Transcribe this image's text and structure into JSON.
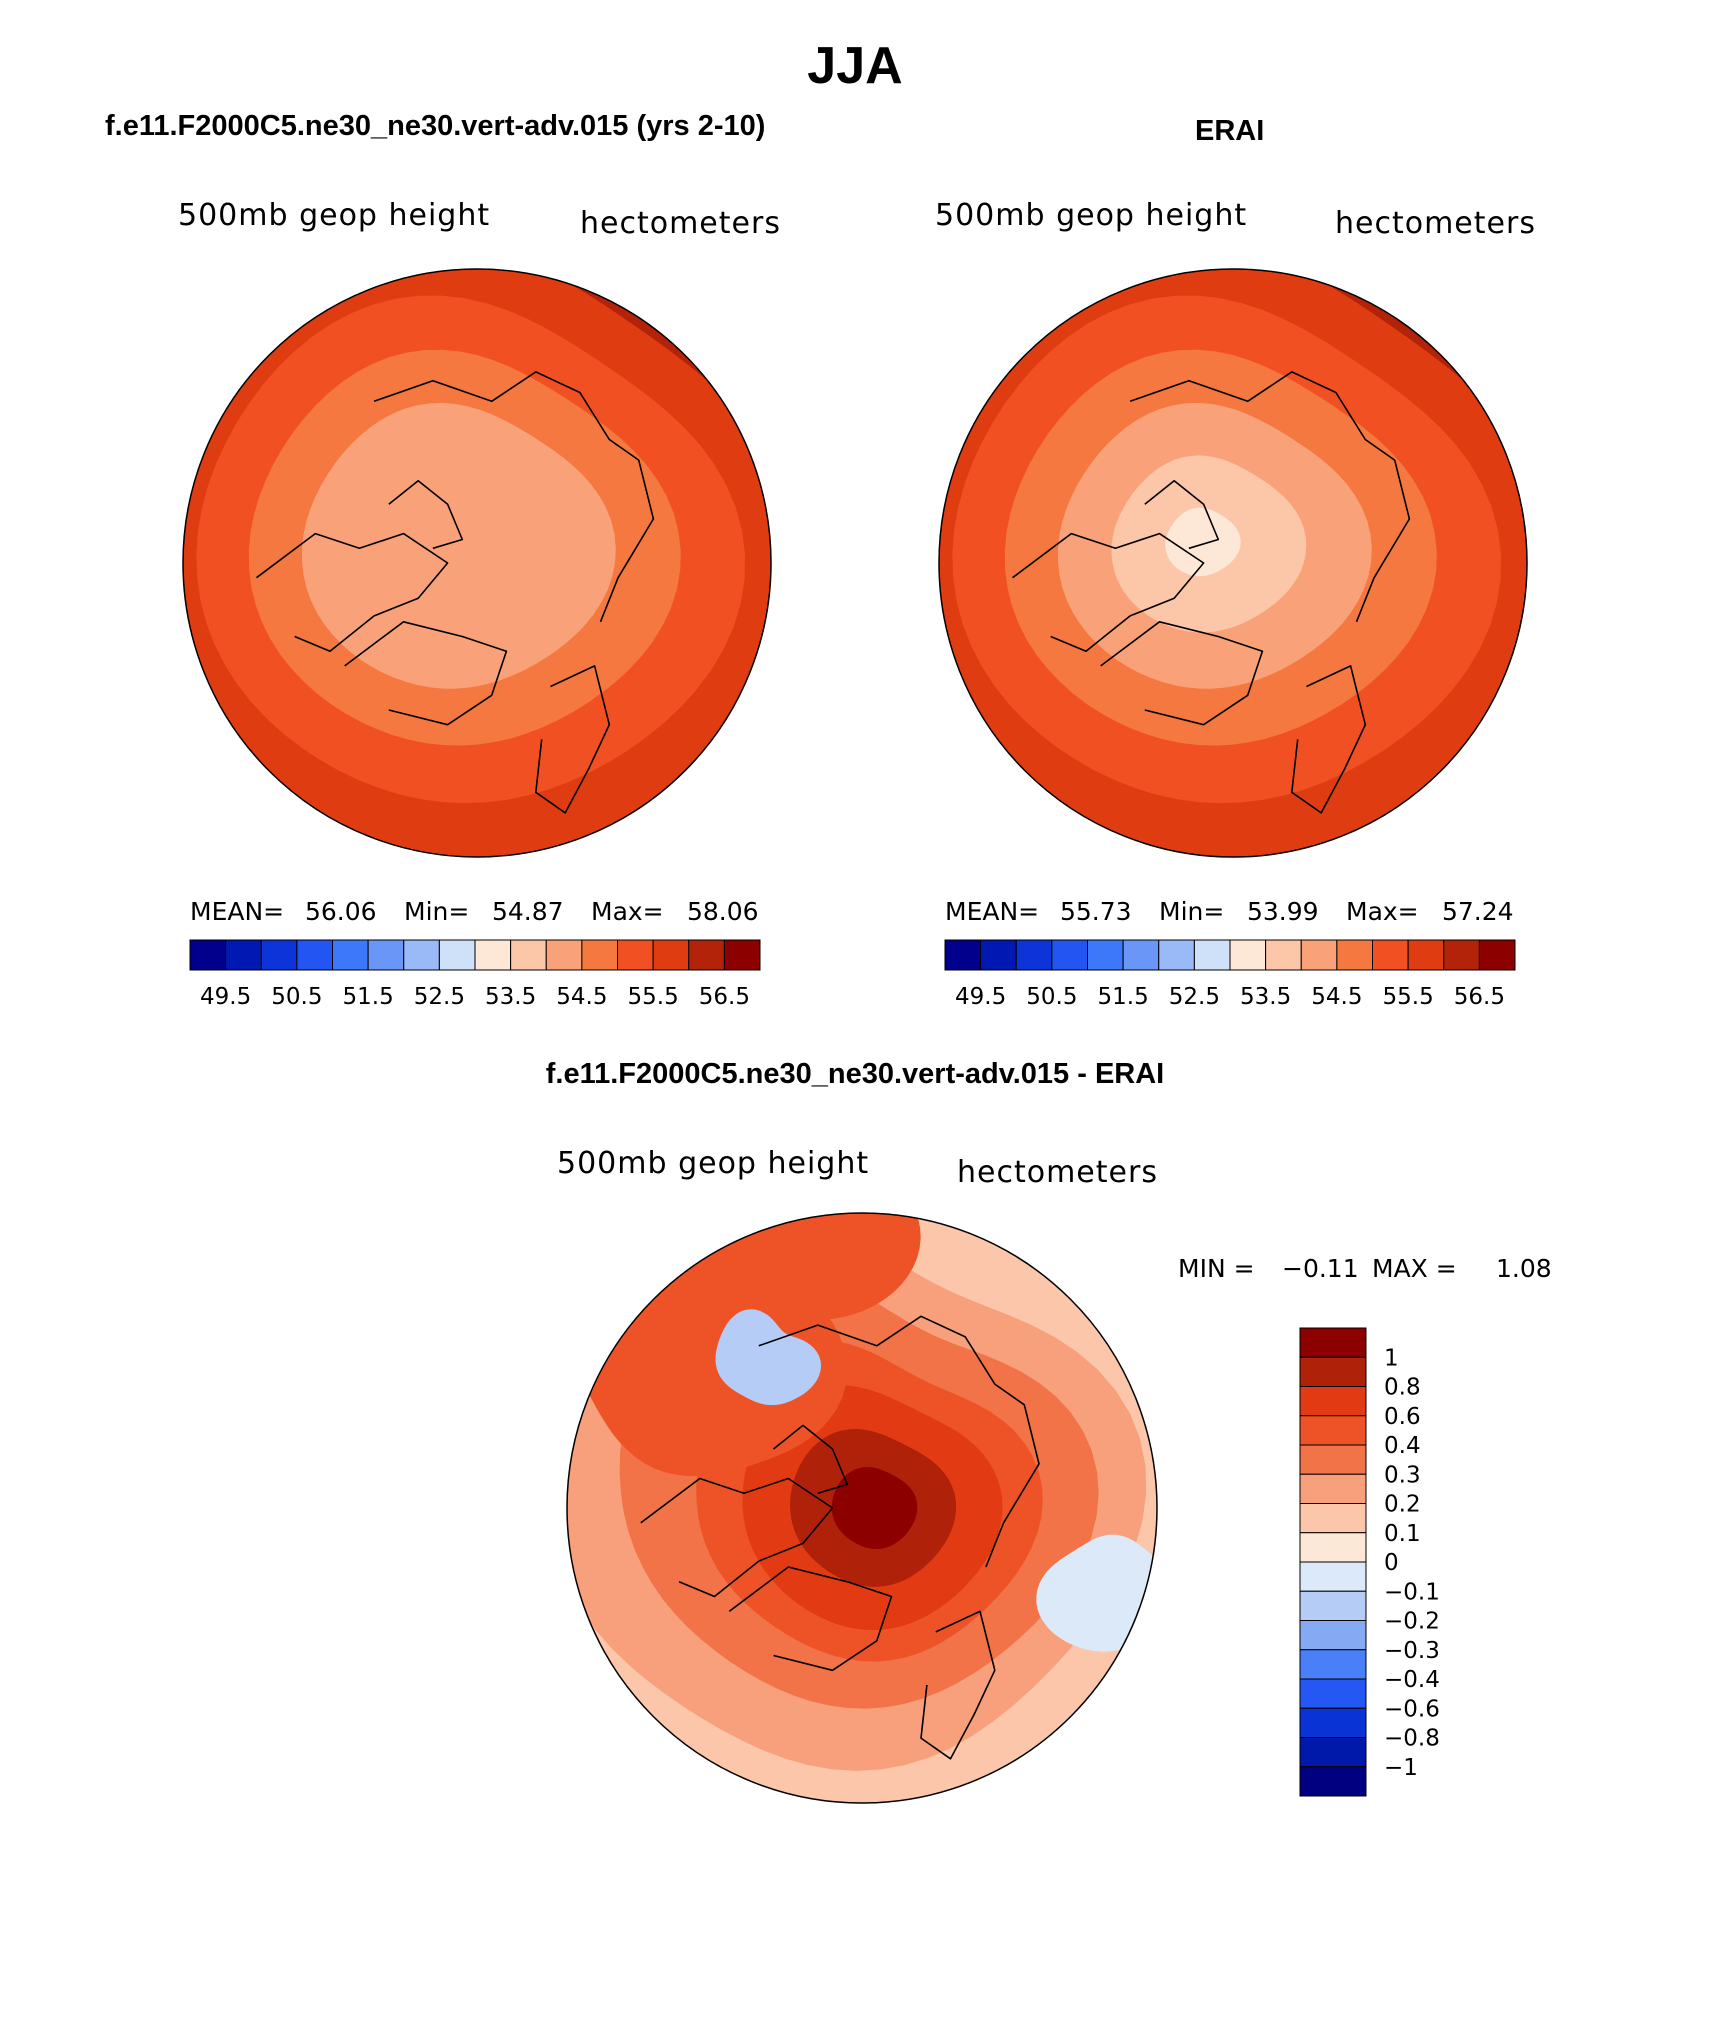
{
  "page": {
    "title": "JJA",
    "left_title": "f.e11.F2000C5.ne30_ne30.vert-adv.015 (yrs 2-10)",
    "right_title": "ERAI",
    "diff_title": "f.e11.F2000C5.ne30_ne30.vert-adv.015 - ERAI"
  },
  "colors": {
    "abs_scale": [
      "#00008c",
      "#0019b2",
      "#0c34d9",
      "#2255f2",
      "#3d78fa",
      "#6996f7",
      "#9ab9f7",
      "#cfe0f9",
      "#fde7d7",
      "#fcc6a8",
      "#f9a27a",
      "#f4783f",
      "#f15022",
      "#e03c12",
      "#b3230a",
      "#8c0000"
    ],
    "diff_scale": [
      "#000080",
      "#0019aa",
      "#0a33d6",
      "#2557f5",
      "#4a80f7",
      "#86a9f3",
      "#b5cdf6",
      "#dbe9f9",
      "#fde7d6",
      "#fbc6a9",
      "#f7a07b",
      "#f17347",
      "#ee5327",
      "#e23b14",
      "#b0210a",
      "#8c0000"
    ]
  },
  "chart_data": [
    {
      "type": "heatmap",
      "panel": "model",
      "projection": "north polar stereographic",
      "variable": "500mb geop height",
      "units": "hectometers",
      "stats": {
        "mean_label": "MEAN=",
        "mean": "56.06",
        "min_label": "Min=",
        "min": "54.87",
        "max_label": "Max=",
        "max": "58.06"
      },
      "levels": [
        "49.5",
        "50.5",
        "51.5",
        "52.5",
        "53.5",
        "54.5",
        "55.5",
        "56.5"
      ],
      "field_levels_outer_to_center": [
        15,
        14,
        13,
        12,
        11,
        10
      ]
    },
    {
      "type": "heatmap",
      "panel": "observations",
      "projection": "north polar stereographic",
      "variable": "500mb geop height",
      "units": "hectometers",
      "stats": {
        "mean_label": "MEAN=",
        "mean": "55.73",
        "min_label": "Min=",
        "min": "53.99",
        "max_label": "Max=",
        "max": "57.24"
      },
      "levels": [
        "49.5",
        "50.5",
        "51.5",
        "52.5",
        "53.5",
        "54.5",
        "55.5",
        "56.5"
      ],
      "field_levels_outer_to_center": [
        15,
        14,
        13,
        12,
        11,
        10,
        9,
        8
      ]
    },
    {
      "type": "heatmap",
      "panel": "difference",
      "projection": "north polar stereographic",
      "variable": "500mb geop height",
      "units": "hectometers",
      "stats": {
        "min_label": "MIN =",
        "min": "−0.11",
        "max_label": "MAX =",
        "max": "1.08"
      },
      "levels": [
        "1",
        "0.8",
        "0.6",
        "0.4",
        "0.3",
        "0.2",
        "0.1",
        "0",
        "−0.1",
        "−0.2",
        "−0.3",
        "−0.4",
        "−0.6",
        "−0.8",
        "−1"
      ]
    }
  ]
}
